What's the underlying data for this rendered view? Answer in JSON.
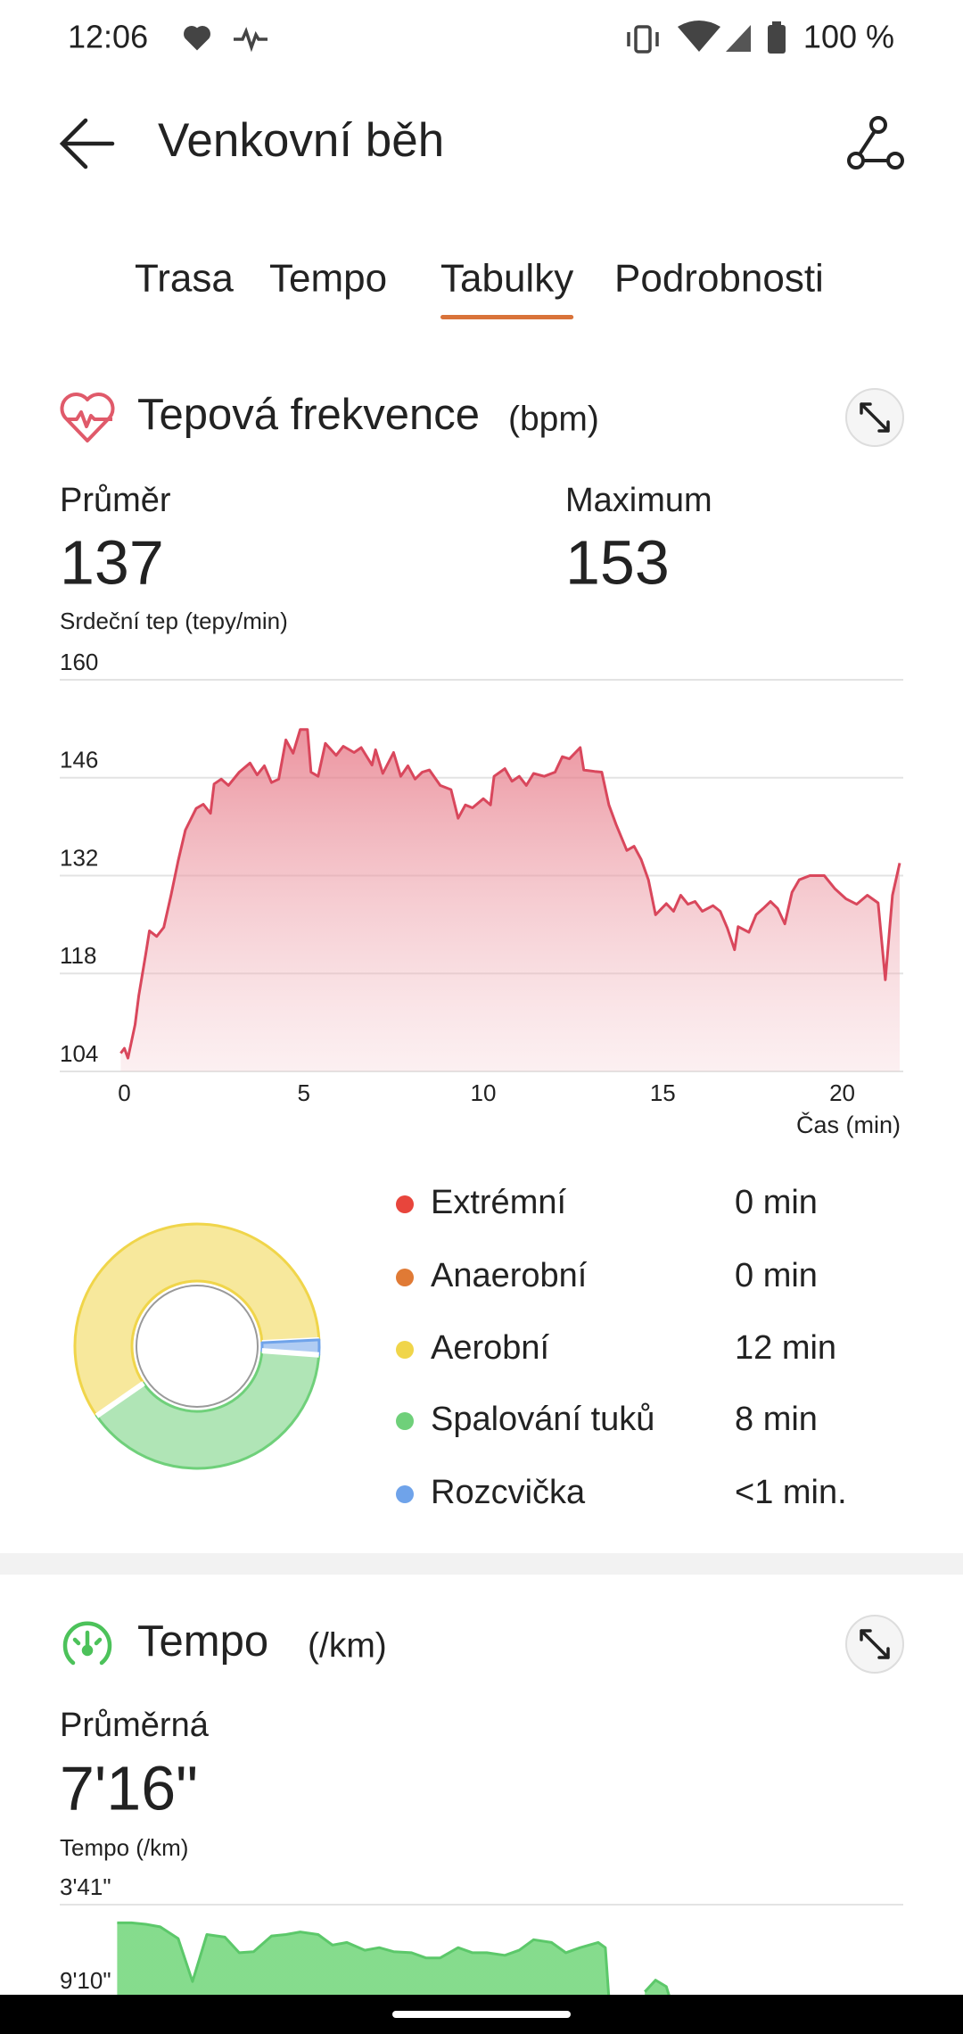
{
  "status_bar": {
    "time": "12:06",
    "battery": "100 %"
  },
  "header": {
    "title": "Venkovní běh"
  },
  "tabs": [
    "Trasa",
    "Tempo",
    "Tabulky",
    "Podrobnosti"
  ],
  "active_tab": 2,
  "heart_rate": {
    "title": "Tepová frekvence",
    "unit": "(bpm)",
    "average_label": "Průměr",
    "average": 137,
    "maximum_label": "Maximum",
    "maximum": 153
  },
  "tempo": {
    "title": "Tempo",
    "unit": "(/km)",
    "average_label": "Průměrná",
    "average": "7'16\""
  },
  "chart_data": [
    {
      "type": "area",
      "y_axis_label": "Srdeční tep (tepy/min)",
      "x_axis_label": "Čas (min)",
      "color": "#d9475c",
      "x": [
        -0.1,
        0,
        0.1,
        0.3,
        0.4,
        0.6,
        0.7,
        0.9,
        1.1,
        1.3,
        1.5,
        1.7,
        2.0,
        2.2,
        2.4,
        2.5,
        2.7,
        2.9,
        3.2,
        3.5,
        3.7,
        3.9,
        4.1,
        4.3,
        4.5,
        4.7,
        4.9,
        5.1,
        5.2,
        5.4,
        5.6,
        5.9,
        6.1,
        6.4,
        6.6,
        6.9,
        7.0,
        7.2,
        7.5,
        7.7,
        7.9,
        8.1,
        8.3,
        8.5,
        8.8,
        9.1,
        9.3,
        9.5,
        9.7,
        10.0,
        10.2,
        10.3,
        10.6,
        10.8,
        11.0,
        11.2,
        11.4,
        11.7,
        12.0,
        12.2,
        12.4,
        12.7,
        12.8,
        13.1,
        13.3,
        13.5,
        13.7,
        14.0,
        14.2,
        14.4,
        14.6,
        14.8,
        15.1,
        15.3,
        15.5,
        15.7,
        15.9,
        16.1,
        16.4,
        16.6,
        16.8,
        17.0,
        17.1,
        17.4,
        17.6,
        17.8,
        18.0,
        18.2,
        18.4,
        18.6,
        18.8,
        19.1,
        19.5,
        19.8,
        20.1,
        20.4,
        20.7,
        21.0,
        21.2,
        21.4,
        21.6
      ],
      "values": [
        106.6,
        107.3,
        105.9,
        110.7,
        114.8,
        120.9,
        124.1,
        123.3,
        124.6,
        129.2,
        134.1,
        138.5,
        141.6,
        142.2,
        140.9,
        145.1,
        145.8,
        144.9,
        146.8,
        148.1,
        146.4,
        147.7,
        145.3,
        145.8,
        151.4,
        149.5,
        152.9,
        152.9,
        146.8,
        146.2,
        150.9,
        149.2,
        150.5,
        149.6,
        150.3,
        147.8,
        150,
        146.6,
        149.6,
        146.2,
        147.7,
        145.8,
        146.8,
        147.1,
        144.9,
        144.3,
        140.2,
        142.1,
        141.7,
        143,
        142.1,
        146.2,
        147.3,
        145.5,
        146.2,
        144.9,
        146.6,
        146.2,
        146.8,
        149,
        148.7,
        150.3,
        147.1,
        146.9,
        146.8,
        142.1,
        139.3,
        135.6,
        136.2,
        134.3,
        131.4,
        126.4,
        128,
        126.9,
        129.2,
        127.9,
        128.3,
        126.9,
        127.7,
        126.9,
        124.5,
        121.4,
        124.7,
        123.9,
        126.4,
        127.3,
        128.3,
        127.3,
        125.1,
        129.6,
        131.4,
        132,
        132,
        130.1,
        128.7,
        127.9,
        129.2,
        128.1,
        117.1,
        129.2,
        133.8
      ],
      "xlim": [
        -1.8,
        21.7
      ],
      "ylim": [
        104,
        160
      ],
      "xticks": [
        0,
        5,
        10,
        15,
        20
      ],
      "yticks": [
        104,
        118,
        132,
        146,
        160
      ],
      "grid": true
    },
    {
      "type": "donut",
      "categories": [
        "Extrémní",
        "Anaerobní",
        "Aerobní",
        "Spalování tuků",
        "Rozcvička"
      ],
      "values": [
        0,
        0,
        12,
        8,
        0.4
      ],
      "value_labels": [
        "0 min",
        "0 min",
        "12 min",
        "8 min",
        "<1 min."
      ],
      "colors": [
        "#e8453c",
        "#e07a35",
        "#f0d54a",
        "#6fd07a",
        "#6fa3ea"
      ]
    },
    {
      "type": "area",
      "y_axis_label": "Tempo (/km)",
      "color": "#5cc86a",
      "x": [
        -0.2,
        0.2,
        0.6,
        1.0,
        1.5,
        1.9,
        2.3,
        2.8,
        3.2,
        3.6,
        4.1,
        4.5,
        4.9,
        5.4,
        5.8,
        6.2,
        6.7,
        7.1,
        7.5,
        8.0,
        8.4,
        8.8,
        9.3,
        9.7,
        10.1,
        10.6,
        11.0,
        11.4,
        11.9,
        12.3,
        12.7,
        13.2,
        13.4,
        13.5,
        14.0,
        14.5,
        14.8,
        15.1,
        15.2
      ],
      "values": [
        285,
        285,
        290,
        299,
        340,
        491,
        326,
        335,
        390,
        386,
        331,
        326,
        317,
        326,
        363,
        354,
        381,
        372,
        386,
        390,
        408,
        408,
        372,
        390,
        390,
        399,
        381,
        344,
        354,
        390,
        372,
        354,
        372,
        550,
        null,
        527,
        486,
        509,
        550
      ],
      "xlim": [
        -1.8,
        21.7
      ],
      "ylim": [
        550,
        221
      ],
      "yticks": [
        {
          "value": 221,
          "label": "3'41\""
        },
        {
          "value": 550,
          "label": "9'10\""
        }
      ],
      "grid": true
    }
  ]
}
